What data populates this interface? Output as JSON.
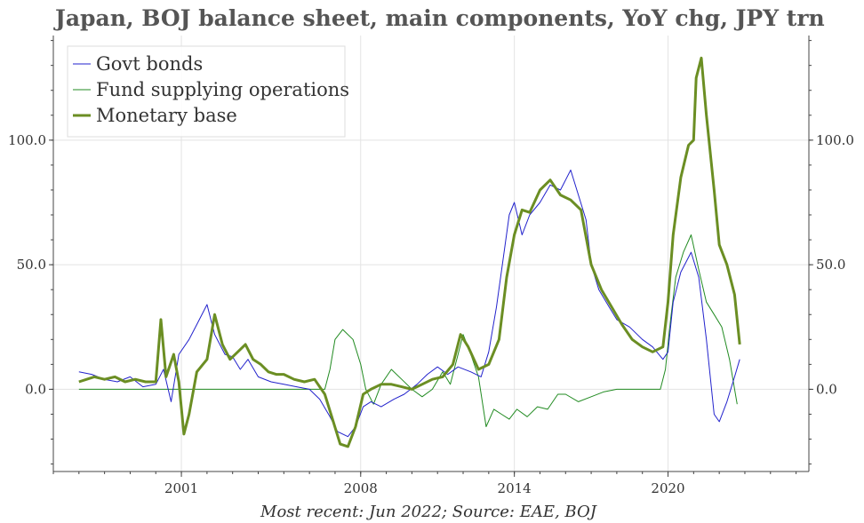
{
  "chart_data": {
    "type": "line",
    "title": "Japan, BOJ balance sheet, main components, YoY chg, JPY trn",
    "caption": "Most recent: Jun 2022; Source: EAE, BOJ",
    "xlabel": "",
    "ylabel": "",
    "xlim": [
      1996.0,
      2025.5
    ],
    "ylim": [
      -33,
      142
    ],
    "x_ticks": [
      2001,
      2008,
      2014,
      2020
    ],
    "y_ticks": [
      0,
      50,
      100
    ],
    "y_tick_labels": [
      "0.0",
      "50.0",
      "100.0"
    ],
    "grid": true,
    "legend_position": "top-left",
    "series": [
      {
        "name": "Govt bonds",
        "color": "#2222cc",
        "width": 1,
        "points": [
          [
            1997.0,
            7
          ],
          [
            1997.5,
            6
          ],
          [
            1998.0,
            4
          ],
          [
            1998.5,
            3
          ],
          [
            1999.0,
            5
          ],
          [
            1999.5,
            1
          ],
          [
            2000.0,
            2
          ],
          [
            2000.3,
            8
          ],
          [
            2000.6,
            -5
          ],
          [
            2000.9,
            14
          ],
          [
            2001.3,
            20
          ],
          [
            2001.6,
            26
          ],
          [
            2002.0,
            34
          ],
          [
            2002.3,
            22
          ],
          [
            2002.7,
            14
          ],
          [
            2003.0,
            13
          ],
          [
            2003.3,
            8
          ],
          [
            2003.6,
            12
          ],
          [
            2004.0,
            5
          ],
          [
            2004.5,
            3
          ],
          [
            2005.0,
            2
          ],
          [
            2005.5,
            1
          ],
          [
            2006.0,
            0
          ],
          [
            2006.4,
            -4
          ],
          [
            2006.8,
            -11
          ],
          [
            2007.1,
            -17
          ],
          [
            2007.5,
            -19
          ],
          [
            2007.8,
            -15
          ],
          [
            2008.1,
            -7
          ],
          [
            2008.4,
            -5
          ],
          [
            2008.8,
            -7
          ],
          [
            2009.3,
            -4
          ],
          [
            2009.7,
            -2
          ],
          [
            2010.2,
            2
          ],
          [
            2010.6,
            6
          ],
          [
            2011.0,
            9
          ],
          [
            2011.4,
            6
          ],
          [
            2011.8,
            9
          ],
          [
            2012.3,
            7
          ],
          [
            2012.7,
            5
          ],
          [
            2013.0,
            15
          ],
          [
            2013.3,
            33
          ],
          [
            2013.6,
            55
          ],
          [
            2013.8,
            70
          ],
          [
            2014.0,
            75
          ],
          [
            2014.3,
            62
          ],
          [
            2014.6,
            70
          ],
          [
            2015.0,
            75
          ],
          [
            2015.4,
            82
          ],
          [
            2015.8,
            80
          ],
          [
            2016.2,
            88
          ],
          [
            2016.5,
            78
          ],
          [
            2016.8,
            68
          ],
          [
            2017.0,
            50
          ],
          [
            2017.3,
            40
          ],
          [
            2017.7,
            33
          ],
          [
            2018.0,
            28
          ],
          [
            2018.5,
            25
          ],
          [
            2019.0,
            20
          ],
          [
            2019.4,
            17
          ],
          [
            2019.8,
            12
          ],
          [
            2020.0,
            15
          ],
          [
            2020.2,
            35
          ],
          [
            2020.5,
            47
          ],
          [
            2020.9,
            55
          ],
          [
            2021.2,
            45
          ],
          [
            2021.5,
            20
          ],
          [
            2021.8,
            -10
          ],
          [
            2022.0,
            -13
          ],
          [
            2022.3,
            -5
          ],
          [
            2022.6,
            5
          ],
          [
            2022.8,
            12
          ]
        ]
      },
      {
        "name": "Fund supplying operations",
        "color": "#228b22",
        "width": 1,
        "points": [
          [
            1997.0,
            0
          ],
          [
            2001.0,
            0
          ],
          [
            2005.0,
            0
          ],
          [
            2006.6,
            0
          ],
          [
            2006.8,
            8
          ],
          [
            2007.0,
            20
          ],
          [
            2007.3,
            24
          ],
          [
            2007.7,
            20
          ],
          [
            2008.0,
            10
          ],
          [
            2008.2,
            0
          ],
          [
            2008.5,
            -6
          ],
          [
            2008.8,
            2
          ],
          [
            2009.2,
            8
          ],
          [
            2009.6,
            4
          ],
          [
            2010.0,
            0
          ],
          [
            2010.4,
            -3
          ],
          [
            2010.8,
            0
          ],
          [
            2011.2,
            7
          ],
          [
            2011.5,
            2
          ],
          [
            2011.8,
            14
          ],
          [
            2012.0,
            22
          ],
          [
            2012.3,
            14
          ],
          [
            2012.6,
            5
          ],
          [
            2012.9,
            -15
          ],
          [
            2013.2,
            -8
          ],
          [
            2013.5,
            -10
          ],
          [
            2013.8,
            -12
          ],
          [
            2014.1,
            -8
          ],
          [
            2014.5,
            -11
          ],
          [
            2014.9,
            -7
          ],
          [
            2015.3,
            -8
          ],
          [
            2015.7,
            -2
          ],
          [
            2016.0,
            -2
          ],
          [
            2016.5,
            -5
          ],
          [
            2017.0,
            -3
          ],
          [
            2017.5,
            -1
          ],
          [
            2018.0,
            0
          ],
          [
            2018.5,
            0
          ],
          [
            2019.0,
            0
          ],
          [
            2019.5,
            0
          ],
          [
            2019.7,
            0
          ],
          [
            2019.9,
            8
          ],
          [
            2020.1,
            28
          ],
          [
            2020.3,
            45
          ],
          [
            2020.6,
            55
          ],
          [
            2020.9,
            62
          ],
          [
            2021.2,
            48
          ],
          [
            2021.5,
            35
          ],
          [
            2021.8,
            30
          ],
          [
            2022.1,
            25
          ],
          [
            2022.4,
            12
          ],
          [
            2022.7,
            -6
          ]
        ]
      },
      {
        "name": "Monetary base",
        "color": "#6b8e23",
        "width": 3,
        "points": [
          [
            1997.0,
            3
          ],
          [
            1997.3,
            4
          ],
          [
            1997.6,
            5
          ],
          [
            1998.0,
            4
          ],
          [
            1998.4,
            5
          ],
          [
            1998.8,
            3
          ],
          [
            1999.2,
            4
          ],
          [
            1999.6,
            3
          ],
          [
            2000.0,
            3
          ],
          [
            2000.2,
            28
          ],
          [
            2000.4,
            5
          ],
          [
            2000.7,
            14
          ],
          [
            2000.9,
            3
          ],
          [
            2001.1,
            -18
          ],
          [
            2001.3,
            -10
          ],
          [
            2001.6,
            7
          ],
          [
            2002.0,
            12
          ],
          [
            2002.3,
            30
          ],
          [
            2002.6,
            18
          ],
          [
            2002.9,
            12
          ],
          [
            2003.2,
            15
          ],
          [
            2003.5,
            18
          ],
          [
            2003.8,
            12
          ],
          [
            2004.1,
            10
          ],
          [
            2004.4,
            7
          ],
          [
            2004.7,
            6
          ],
          [
            2005.0,
            6
          ],
          [
            2005.4,
            4
          ],
          [
            2005.8,
            3
          ],
          [
            2006.2,
            4
          ],
          [
            2006.6,
            -2
          ],
          [
            2006.9,
            -12
          ],
          [
            2007.2,
            -22
          ],
          [
            2007.5,
            -23
          ],
          [
            2007.8,
            -15
          ],
          [
            2008.1,
            -2
          ],
          [
            2008.4,
            0
          ],
          [
            2008.8,
            2
          ],
          [
            2009.2,
            2
          ],
          [
            2009.6,
            1
          ],
          [
            2010.0,
            0
          ],
          [
            2010.4,
            2
          ],
          [
            2010.8,
            4
          ],
          [
            2011.2,
            5
          ],
          [
            2011.6,
            10
          ],
          [
            2011.9,
            22
          ],
          [
            2012.2,
            17
          ],
          [
            2012.6,
            8
          ],
          [
            2013.0,
            10
          ],
          [
            2013.4,
            20
          ],
          [
            2013.7,
            45
          ],
          [
            2014.0,
            62
          ],
          [
            2014.3,
            72
          ],
          [
            2014.6,
            71
          ],
          [
            2015.0,
            80
          ],
          [
            2015.4,
            84
          ],
          [
            2015.8,
            78
          ],
          [
            2016.2,
            76
          ],
          [
            2016.6,
            72
          ],
          [
            2017.0,
            50
          ],
          [
            2017.4,
            40
          ],
          [
            2017.8,
            33
          ],
          [
            2018.2,
            26
          ],
          [
            2018.6,
            20
          ],
          [
            2019.0,
            17
          ],
          [
            2019.4,
            15
          ],
          [
            2019.8,
            17
          ],
          [
            2020.0,
            35
          ],
          [
            2020.2,
            62
          ],
          [
            2020.5,
            85
          ],
          [
            2020.8,
            98
          ],
          [
            2021.0,
            100
          ],
          [
            2021.1,
            125
          ],
          [
            2021.3,
            133
          ],
          [
            2021.5,
            110
          ],
          [
            2021.8,
            80
          ],
          [
            2022.0,
            58
          ],
          [
            2022.3,
            50
          ],
          [
            2022.6,
            38
          ],
          [
            2022.8,
            18
          ]
        ]
      }
    ]
  }
}
